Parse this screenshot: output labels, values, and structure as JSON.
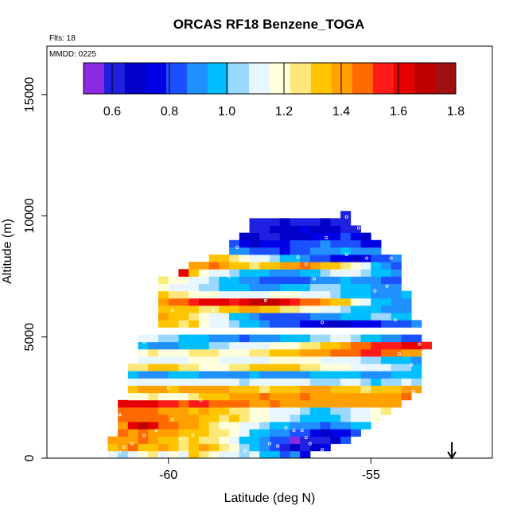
{
  "chart_data": {
    "type": "heatmap",
    "title": "ORCAS RF18 Benzene_TOGA",
    "flights_label": "Flts: 18",
    "date_label": "MMDD: 0225",
    "xlabel": "Latitude (deg N)",
    "ylabel": "Altitude (m)",
    "xlim": [
      -63,
      -52
    ],
    "ylim": [
      0,
      17000
    ],
    "x_ticks": [
      -60,
      -55
    ],
    "x_tick_labels": [
      "-60",
      "-55"
    ],
    "y_ticks": [
      0,
      5000,
      10000,
      15000
    ],
    "y_tick_labels": [
      "0",
      "5000",
      "10000",
      "15000"
    ],
    "colorbar": {
      "range": [
        0.5,
        1.8
      ],
      "ticks": [
        0.6,
        0.8,
        1.0,
        1.2,
        1.4,
        1.6,
        1.8
      ],
      "tick_labels": [
        "0.6",
        "0.8",
        "1.0",
        "1.2",
        "1.4",
        "1.6",
        "1.8"
      ],
      "colors": [
        "#8a2be2",
        "#2020e0",
        "#0000c8",
        "#0000e6",
        "#1a50ff",
        "#2090ff",
        "#00bfff",
        "#9ad8ff",
        "#e8f6ff",
        "#ffffdc",
        "#ffe87a",
        "#ffc400",
        "#ffa000",
        "#ff6a00",
        "#ff1a1a",
        "#e60000",
        "#c00000",
        "#a01010"
      ]
    },
    "cell_width_deg": 0.25,
    "cell_height_m": 300,
    "grid_layers": [
      {
        "alt": 150,
        "lat_min": -61.5,
        "lat_max": -56.5,
        "vals": [
          1.15,
          1.05,
          1.1,
          1.2,
          1.25,
          1.15,
          1.2,
          1.1,
          1.3,
          1.25,
          1.2,
          1.15,
          1.1,
          1.05,
          1.1,
          1.0,
          0.95,
          0.85,
          0.9,
          0.75
        ]
      },
      {
        "alt": 450,
        "lat_min": -61.5,
        "lat_max": -56.0,
        "vals": [
          1.35,
          1.4,
          1.45,
          1.3,
          1.35,
          1.4,
          1.3,
          1.25,
          1.35,
          1.4,
          1.3,
          1.25,
          1.2,
          1.05,
          0.95,
          0.9,
          0.8,
          0.6,
          0.65,
          0.62,
          0.7,
          0.75
        ]
      },
      {
        "alt": 750,
        "lat_min": -61.5,
        "lat_max": -55.5,
        "vals": [
          1.4,
          1.42,
          1.38,
          1.45,
          1.4,
          1.35,
          1.3,
          1.25,
          1.3,
          1.28,
          1.25,
          1.2,
          1.1,
          1.0,
          0.95,
          0.9,
          0.85,
          0.8,
          0.5,
          0.6,
          0.58,
          0.62,
          0.7,
          0.85
        ]
      },
      {
        "alt": 1050,
        "lat_min": -61.25,
        "lat_max": -55.25,
        "vals": [
          1.45,
          1.4,
          1.5,
          1.42,
          1.38,
          1.4,
          1.35,
          1.32,
          1.3,
          1.28,
          1.25,
          1.2,
          1.15,
          1.0,
          0.95,
          0.9,
          0.88,
          0.85,
          0.8,
          0.75,
          0.7,
          0.72,
          0.75,
          0.82
        ]
      },
      {
        "alt": 1350,
        "lat_min": -61.25,
        "lat_max": -55.0,
        "vals": [
          1.42,
          1.65,
          1.7,
          1.65,
          1.5,
          1.45,
          1.4,
          1.38,
          1.3,
          1.25,
          1.2,
          1.22,
          1.15,
          1.1,
          1.05,
          1.0,
          0.95,
          0.92,
          0.9,
          0.88,
          0.85,
          0.88,
          0.9,
          0.95,
          1.0
        ]
      },
      {
        "alt": 1650,
        "lat_min": -61.25,
        "lat_max": -54.75,
        "vals": [
          1.48,
          1.5,
          1.45,
          1.5,
          1.45,
          1.4,
          1.42,
          1.38,
          1.35,
          1.3,
          1.28,
          1.3,
          1.25,
          1.22,
          1.2,
          1.15,
          1.1,
          1.05,
          1.0,
          0.98,
          0.95,
          1.0,
          1.05,
          1.1,
          1.15,
          1.2
        ]
      },
      {
        "alt": 1950,
        "lat_min": -61.25,
        "lat_max": -54.5,
        "vals": [
          1.45,
          1.48,
          1.5,
          1.45,
          1.42,
          1.4,
          1.38,
          1.35,
          1.4,
          1.35,
          1.3,
          1.28,
          1.25,
          1.2,
          1.18,
          1.15,
          1.12,
          1.1,
          1.05,
          1.0,
          0.98,
          1.02,
          1.05,
          1.1,
          1.15,
          1.2,
          1.25
        ]
      },
      {
        "alt": 2250,
        "lat_min": -61.25,
        "lat_max": -54.25,
        "vals": [
          1.6,
          1.62,
          1.65,
          1.6,
          1.55,
          1.58,
          1.5,
          1.52,
          1.55,
          1.5,
          1.48,
          1.5,
          1.45,
          1.42,
          1.4,
          1.45,
          1.42,
          1.4,
          1.38,
          1.4,
          1.42,
          1.4,
          1.38,
          1.4,
          1.38,
          1.4,
          1.38,
          1.4
        ]
      },
      {
        "alt": 2550,
        "lat_min": -61.0,
        "lat_max": -54.0,
        "vals": [
          1.2,
          1.22,
          1.25,
          1.2,
          1.18,
          1.22,
          1.25,
          1.3,
          1.32,
          1.35,
          1.38,
          1.4,
          1.42,
          1.45,
          1.42,
          1.4,
          1.42,
          1.45,
          1.42,
          1.4,
          1.38,
          1.42,
          1.4,
          1.38,
          1.42,
          1.4,
          1.42,
          1.45
        ]
      },
      {
        "alt": 2850,
        "lat_min": -61.0,
        "lat_max": -53.75,
        "vals": [
          1.35,
          1.38,
          1.4,
          1.38,
          1.35,
          1.38,
          1.4,
          1.42,
          1.4,
          1.38,
          1.35,
          1.32,
          1.3,
          1.28,
          1.3,
          1.32,
          1.35,
          1.38,
          1.4,
          1.38,
          1.35,
          1.32,
          1.3,
          1.28,
          1.3,
          1.32,
          1.35,
          1.38,
          1.4
        ]
      },
      {
        "alt": 3150,
        "lat_min": -61.0,
        "lat_max": -53.75,
        "vals": [
          1.1,
          1.12,
          1.15,
          1.12,
          1.1,
          1.08,
          1.1,
          1.12,
          1.15,
          1.12,
          1.1,
          1.05,
          1.08,
          1.1,
          1.12,
          1.1,
          1.08,
          1.1,
          1.05,
          1.02,
          1.05,
          1.08,
          1.1,
          1.05,
          1.0,
          1.02,
          1.05,
          1.08,
          1.02
        ]
      },
      {
        "alt": 3450,
        "lat_min": -61.0,
        "lat_max": -53.75,
        "vals": [
          0.95,
          0.92,
          0.9,
          0.92,
          0.95,
          0.98,
          0.95,
          0.92,
          0.9,
          0.88,
          0.9,
          0.92,
          0.95,
          0.92,
          0.9,
          0.88,
          0.9,
          0.92,
          0.95,
          0.98,
          1.0,
          0.98,
          0.95,
          0.92,
          0.9,
          0.92,
          0.95,
          0.98,
          1.0
        ]
      },
      {
        "alt": 3750,
        "lat_min": -61.0,
        "lat_max": -53.75,
        "vals": [
          1.25,
          1.28,
          1.3,
          1.32,
          1.3,
          1.28,
          1.25,
          1.22,
          1.2,
          1.22,
          1.25,
          1.28,
          1.3,
          1.32,
          1.35,
          1.32,
          1.3,
          1.28,
          1.25,
          1.22,
          1.2,
          1.18,
          1.15,
          1.12,
          1.1,
          1.08,
          1.05,
          1.02,
          1.0
        ]
      },
      {
        "alt": 4050,
        "lat_min": -60.75,
        "lat_max": -53.75,
        "vals": [
          1.15,
          1.12,
          1.1,
          1.12,
          1.15,
          1.18,
          1.2,
          1.18,
          1.15,
          1.12,
          1.1,
          1.12,
          1.15,
          1.18,
          1.2,
          1.22,
          1.2,
          1.18,
          1.15,
          1.12,
          1.1,
          1.08,
          1.05,
          1.02,
          1.0,
          0.98,
          0.95,
          0.92
        ]
      },
      {
        "alt": 4350,
        "lat_min": -60.75,
        "lat_max": -53.75,
        "vals": [
          1.22,
          1.25,
          1.2,
          1.18,
          1.22,
          1.25,
          1.28,
          1.25,
          1.22,
          1.2,
          1.22,
          1.25,
          1.28,
          1.3,
          1.32,
          1.35,
          1.38,
          1.4,
          1.42,
          1.45,
          1.48,
          1.5,
          1.52,
          1.55,
          1.5,
          1.45,
          1.42,
          1.4
        ]
      },
      {
        "alt": 4650,
        "lat_min": -60.75,
        "lat_max": -53.5,
        "vals": [
          0.95,
          0.92,
          0.9,
          0.92,
          0.95,
          0.98,
          1.0,
          1.02,
          1.05,
          1.08,
          1.1,
          1.12,
          1.15,
          1.18,
          1.2,
          1.22,
          1.25,
          1.28,
          1.3,
          1.35,
          1.4,
          1.45,
          1.5,
          1.52,
          1.55,
          1.58,
          1.6,
          1.62,
          1.55
        ]
      },
      {
        "alt": 4950,
        "lat_min": -60.75,
        "lat_max": -53.75,
        "vals": [
          1.1,
          1.08,
          1.05,
          1.02,
          1.0,
          0.98,
          0.95,
          0.92,
          0.9,
          0.88,
          0.85,
          0.88,
          0.9,
          0.92,
          0.95,
          0.98,
          1.0,
          1.02,
          1.05,
          1.08,
          1.1,
          1.05,
          1.0,
          0.95,
          0.9,
          0.88,
          0.85,
          0.82
        ]
      },
      {
        "alt": 5550,
        "lat_min": -60.25,
        "lat_max": -53.75,
        "vals": [
          1.35,
          1.3,
          1.25,
          1.3,
          1.2,
          1.15,
          1.1,
          1.05,
          1.0,
          0.95,
          0.9,
          0.85,
          0.82,
          0.8,
          0.75,
          0.72,
          0.7,
          0.68,
          0.7,
          0.72,
          0.75,
          0.78,
          0.8,
          0.82,
          0.85,
          0.88
        ]
      },
      {
        "alt": 5850,
        "lat_min": -60.25,
        "lat_max": -54.0,
        "vals": [
          1.4,
          1.35,
          1.3,
          1.25,
          1.2,
          1.15,
          1.1,
          1.0,
          0.95,
          0.9,
          0.85,
          0.82,
          0.8,
          0.82,
          0.85,
          0.88,
          0.9,
          0.92,
          0.95,
          0.98,
          1.0,
          1.02,
          1.05,
          1.0,
          0.95
        ]
      },
      {
        "alt": 6150,
        "lat_min": -60.25,
        "lat_max": -54.0,
        "vals": [
          1.3,
          1.32,
          1.35,
          1.3,
          1.28,
          1.25,
          1.3,
          1.35,
          1.4,
          1.38,
          1.35,
          1.3,
          1.28,
          1.25,
          1.22,
          1.2,
          1.15,
          1.1,
          1.05,
          1.0,
          0.98,
          0.95,
          0.92,
          0.9,
          0.88
        ]
      },
      {
        "alt": 6450,
        "lat_min": -60.25,
        "lat_max": -54.0,
        "vals": [
          1.4,
          1.45,
          1.5,
          1.55,
          1.62,
          1.65,
          1.6,
          1.55,
          1.65,
          1.7,
          1.72,
          1.68,
          1.6,
          1.55,
          1.5,
          1.45,
          1.4,
          1.35,
          1.3,
          1.2,
          1.1,
          1.0,
          0.95,
          0.9,
          0.88
        ]
      },
      {
        "alt": 6750,
        "lat_min": -60.25,
        "lat_max": -54.0,
        "vals": [
          1.3,
          1.28,
          1.25,
          1.22,
          1.2,
          1.18,
          1.15,
          1.12,
          1.1,
          1.12,
          1.15,
          1.18,
          1.2,
          1.18,
          1.15,
          1.12,
          1.1,
          1.05,
          1.0,
          0.98,
          0.95,
          0.92,
          0.9,
          0.92,
          0.95
        ]
      },
      {
        "alt": 7050,
        "lat_min": -60.25,
        "lat_max": -54.25,
        "vals": [
          1.2,
          1.15,
          1.1,
          1.08,
          1.05,
          1.02,
          1.0,
          0.98,
          0.95,
          0.92,
          0.9,
          0.92,
          0.95,
          0.98,
          1.0,
          1.02,
          1.05,
          1.02,
          1.0,
          0.98,
          0.95,
          0.92,
          0.9,
          0.88
        ]
      },
      {
        "alt": 7350,
        "lat_min": -60.25,
        "lat_max": -54.25,
        "vals": [
          1.25,
          1.22,
          1.2,
          1.15,
          1.1,
          1.05,
          1.0,
          0.95,
          0.9,
          0.88,
          0.85,
          0.82,
          0.8,
          0.82,
          0.85,
          0.88,
          0.9,
          0.92,
          0.95,
          0.92,
          0.9,
          0.88,
          0.85,
          0.82
        ]
      },
      {
        "alt": 7650,
        "lat_min": -59.75,
        "lat_max": -54.25,
        "vals": [
          1.65,
          1.3,
          1.2,
          1.15,
          1.1,
          1.05,
          1.0,
          0.98,
          0.95,
          0.92,
          0.9,
          0.92,
          0.95,
          1.0,
          1.05,
          1.1,
          1.15,
          1.1,
          1.05,
          1.0,
          0.95,
          0.92
        ]
      },
      {
        "alt": 7950,
        "lat_min": -59.5,
        "lat_max": -54.25,
        "vals": [
          1.4,
          1.42,
          1.45,
          1.4,
          1.35,
          1.3,
          1.25,
          1.3,
          1.35,
          1.4,
          1.42,
          1.45,
          1.4,
          1.35,
          1.3,
          1.25,
          1.2,
          1.1,
          1.0,
          0.9,
          0.85
        ]
      },
      {
        "alt": 8250,
        "lat_min": -59.0,
        "lat_max": -54.25,
        "vals": [
          1.35,
          1.3,
          1.25,
          1.2,
          1.15,
          1.1,
          1.05,
          1.0,
          0.95,
          0.9,
          0.85,
          0.8,
          0.75,
          0.72,
          0.7,
          0.75,
          0.8,
          0.85,
          0.9
        ]
      },
      {
        "alt": 8550,
        "lat_min": -58.5,
        "lat_max": -54.75,
        "vals": [
          0.9,
          0.88,
          0.85,
          0.82,
          0.8,
          0.78,
          0.82,
          0.85,
          0.88,
          0.9,
          0.92,
          0.95,
          0.92,
          0.9,
          0.88
        ]
      },
      {
        "alt": 8850,
        "lat_min": -58.5,
        "lat_max": -54.75,
        "vals": [
          0.85,
          0.75,
          0.7,
          0.72,
          0.75,
          0.78,
          0.8,
          0.82,
          0.85,
          0.88,
          0.85,
          0.82,
          0.8,
          0.78,
          0.75
        ]
      },
      {
        "alt": 9150,
        "lat_min": -58.25,
        "lat_max": -55.0,
        "vals": [
          0.7,
          0.65,
          0.6,
          0.62,
          0.65,
          0.68,
          0.7,
          0.72,
          0.75,
          0.78,
          0.8,
          0.75,
          0.7
        ]
      },
      {
        "alt": 9450,
        "lat_min": -58.0,
        "lat_max": -55.25,
        "vals": [
          0.6,
          0.62,
          0.65,
          0.68,
          0.7,
          0.72,
          0.7,
          0.68,
          0.65,
          0.62,
          0.6
        ]
      },
      {
        "alt": 9750,
        "lat_min": -58.0,
        "lat_max": -55.5,
        "vals": [
          0.62,
          0.6,
          0.62,
          0.65,
          0.62,
          0.6,
          0.62,
          0.65,
          0.62,
          0.6
        ]
      },
      {
        "alt": 10050,
        "lat_min": -55.75,
        "lat_max": -55.5,
        "vals": [
          0.6
        ]
      }
    ],
    "points": [
      [
        -61.1,
        450
      ],
      [
        -60.9,
        600
      ],
      [
        -60.6,
        950
      ],
      [
        -60.3,
        1150
      ],
      [
        -59.9,
        1600
      ],
      [
        -59.7,
        800
      ],
      [
        -59.4,
        950
      ],
      [
        -58.6,
        400
      ],
      [
        -58.1,
        300
      ],
      [
        -57.5,
        600
      ],
      [
        -57.1,
        1250
      ],
      [
        -56.9,
        1150
      ],
      [
        -56.7,
        1150
      ],
      [
        -56.6,
        850
      ],
      [
        -56.4,
        200
      ],
      [
        -56.2,
        350
      ],
      [
        -61.2,
        1800
      ],
      [
        -61.1,
        2700
      ],
      [
        -60.6,
        4800
      ],
      [
        -59.7,
        7000
      ],
      [
        -59.8,
        7800
      ],
      [
        -59.2,
        2400
      ],
      [
        -58.9,
        6100
      ],
      [
        -58.5,
        7500
      ],
      [
        -58.3,
        8700
      ],
      [
        -57.6,
        6500
      ],
      [
        -57.2,
        6800
      ],
      [
        -56.8,
        8300
      ],
      [
        -56.6,
        8000
      ],
      [
        -56.4,
        7400
      ],
      [
        -56.1,
        9100
      ],
      [
        -55.6,
        9950
      ],
      [
        -55.1,
        8250
      ],
      [
        -54.9,
        6900
      ],
      [
        -54.6,
        7100
      ],
      [
        -54.4,
        5700
      ],
      [
        -54.3,
        4300
      ],
      [
        -54.8,
        3650
      ],
      [
        -55.2,
        3700
      ],
      [
        -56.2,
        5600
      ],
      [
        -55.6,
        8400
      ],
      [
        -55.3,
        9500
      ],
      [
        -54.5,
        8250
      ],
      [
        -53.6,
        5550
      ],
      [
        -53.8,
        4700
      ],
      [
        -53.95,
        2750
      ],
      [
        -54.0,
        3850
      ],
      [
        -57.3,
        500
      ],
      [
        -59.9,
        6100
      ],
      [
        -60.0,
        2900
      ],
      [
        -61.2,
        250
      ],
      [
        -56.5,
        600
      ]
    ],
    "arrow": {
      "lat": -53.0
    }
  }
}
